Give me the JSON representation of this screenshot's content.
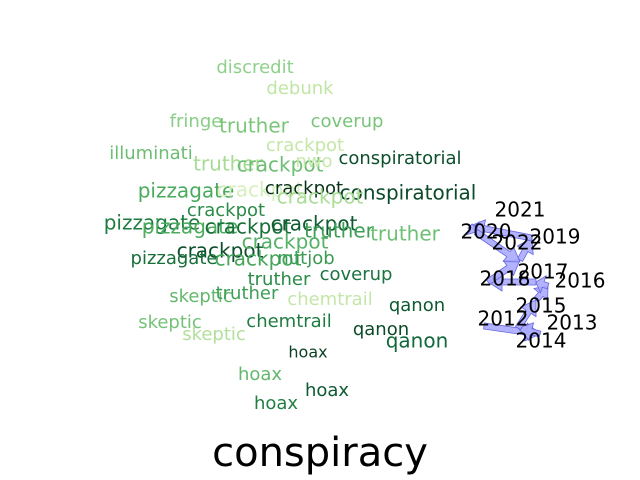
{
  "chart_data": {
    "type": "scatter",
    "title": "conspiracy",
    "words": [
      {
        "text": "discredit",
        "color": "#8fd18a"
      },
      {
        "text": "debunk",
        "color": "#c0e6a5"
      },
      {
        "text": "fringe",
        "color": "#88cd84"
      },
      {
        "text": "truther",
        "color": "#7cc67a"
      },
      {
        "text": "coverup",
        "color": "#78c479"
      },
      {
        "text": "illuminati",
        "color": "#6dbd73"
      },
      {
        "text": "crackpot",
        "color": "#c4e7a8"
      },
      {
        "text": "truther",
        "color": "#a6db94"
      },
      {
        "text": "crackpot",
        "color": "#6dbe73"
      },
      {
        "text": "nwo",
        "color": "#c8e9ab"
      },
      {
        "text": "conspiratorial",
        "color": "#0d4f2c"
      },
      {
        "text": "pizzagate",
        "color": "#4aaa5d"
      },
      {
        "text": "crackpot",
        "color": "#d7efbf"
      },
      {
        "text": "crackpot",
        "color": "#08311a"
      },
      {
        "text": "conspiratorial",
        "color": "#0b4a29"
      },
      {
        "text": "crackpot",
        "color": "#2a8a48"
      },
      {
        "text": "crackpot",
        "color": "#a9dc97"
      },
      {
        "text": "pizzagate",
        "color": "#1c7b3f"
      },
      {
        "text": "pizzagate",
        "color": "#4cac5e"
      },
      {
        "text": "crackpot",
        "color": "#166e37"
      },
      {
        "text": "crackpot",
        "color": "#0f5b2f"
      },
      {
        "text": "truther",
        "color": "#3d9f56"
      },
      {
        "text": "truther",
        "color": "#6dbf74"
      },
      {
        "text": "crackpot",
        "color": "#0c4f2a"
      },
      {
        "text": "crackpot",
        "color": "#56b167"
      },
      {
        "text": "pizzagate",
        "color": "#17703a"
      },
      {
        "text": "crackpot",
        "color": "#45a55b"
      },
      {
        "text": "nutjob",
        "color": "#3a9a53"
      },
      {
        "text": "truther",
        "color": "#2b8c48"
      },
      {
        "text": "coverup",
        "color": "#1a7340"
      },
      {
        "text": "skeptic",
        "color": "#64b86d"
      },
      {
        "text": "truther",
        "color": "#3e9e56"
      },
      {
        "text": "chemtrail",
        "color": "#c4e6a8"
      },
      {
        "text": "qanon",
        "color": "#0d5a31"
      },
      {
        "text": "skeptic",
        "color": "#74c277"
      },
      {
        "text": "skeptic",
        "color": "#b1df9c"
      },
      {
        "text": "chemtrail",
        "color": "#1f7c41"
      },
      {
        "text": "qanon",
        "color": "#0b4b29"
      },
      {
        "text": "qanon",
        "color": "#12683b"
      },
      {
        "text": "hoax",
        "color": "#0a3f23"
      },
      {
        "text": "hoax",
        "color": "#63b86c"
      },
      {
        "text": "hoax",
        "color": "#0c5a31"
      },
      {
        "text": "hoax",
        "color": "#217f43"
      }
    ],
    "years": [
      "2021",
      "2020",
      "2022",
      "2019",
      "2017",
      "2016",
      "2018",
      "2015",
      "2012",
      "2013",
      "2014"
    ],
    "arrow_color": "#aaaaff",
    "arrow_edge_color": "#6666dd"
  }
}
